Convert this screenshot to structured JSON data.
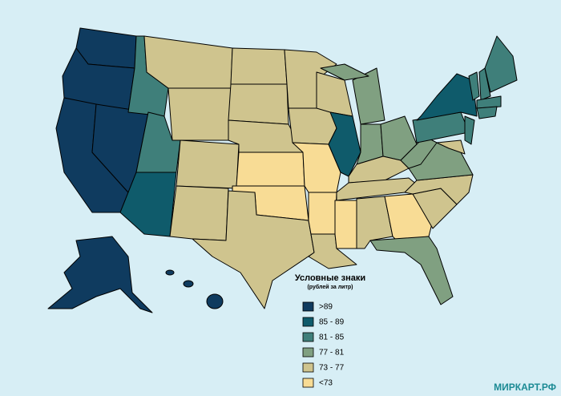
{
  "legend": {
    "title": "Условные знаки",
    "subtitle": "(рублей за литр)",
    "items": [
      {
        "label": ">89",
        "color": "#0f3b5f"
      },
      {
        "label": "85 - 89",
        "color": "#0f5b6b"
      },
      {
        "label": "81 - 85",
        "color": "#3f7f7a"
      },
      {
        "label": "77 - 81",
        "color": "#80a081"
      },
      {
        "label": "73 - 77",
        "color": "#cfc48e"
      },
      {
        "label": "<73",
        "color": "#f8dc95"
      }
    ]
  },
  "watermark": "МИРКАРТ.РФ"
}
